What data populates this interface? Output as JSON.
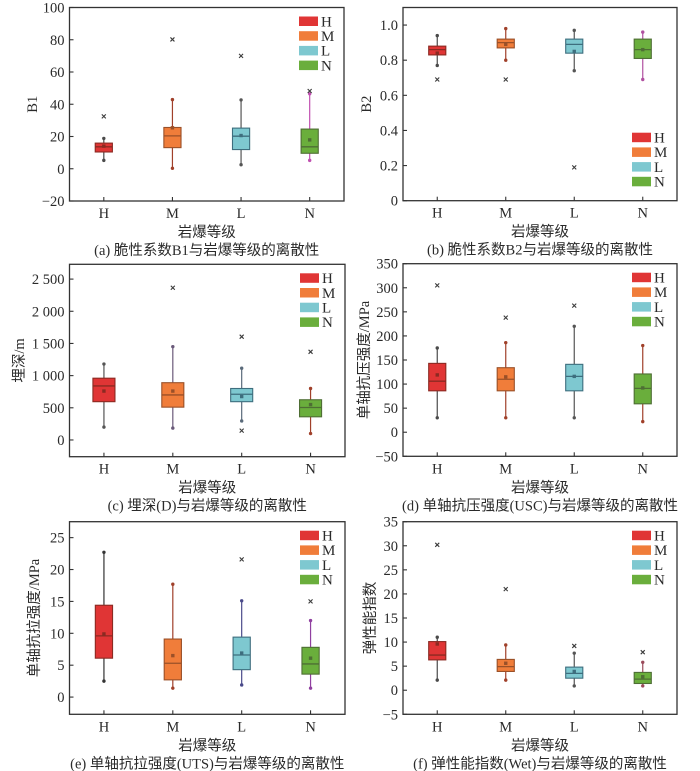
{
  "colors": {
    "H": "#e03535",
    "M": "#f07d3a",
    "L": "#7ec8d0",
    "N": "#6aae3c"
  },
  "edge_colors": {
    "H": "#8b2a22",
    "M": "#9a5028",
    "L": "#3e6e7e",
    "N": "#4e6e34"
  },
  "chart_data": [
    {
      "panel": "a",
      "type": "box",
      "title": "",
      "caption": "(a) 脆性系数B1与岩爆等级的离散性",
      "xlabel": "岩爆等级",
      "ylabel": "B1",
      "categories": [
        "H",
        "M",
        "L",
        "N"
      ],
      "ylim": [
        -20,
        100
      ],
      "yticks": [
        -20,
        0,
        20,
        40,
        60,
        80,
        100
      ],
      "ytick_labels": [
        "−20",
        "0",
        "20",
        "40",
        "60",
        "80",
        "100"
      ],
      "grid": false,
      "legend": {
        "position": "top-right",
        "entries": [
          "H",
          "M",
          "L",
          "N"
        ]
      },
      "series": [
        {
          "name": "H",
          "low": 5.2,
          "q1": 10.4,
          "median": 13.6,
          "q3": 15.9,
          "high": 18.8,
          "mean": 14.0,
          "outliers": [
            32.5
          ],
          "whisker_color": "#4a4a4a"
        },
        {
          "name": "M",
          "low": 0.3,
          "q1": 13.1,
          "median": 20.4,
          "q3": 25.6,
          "high": 42.9,
          "mean": 25.4,
          "outliers": [
            80.2
          ],
          "whisker_color": "#a0402a"
        },
        {
          "name": "L",
          "low": 2.5,
          "q1": 11.9,
          "median": 20.2,
          "q3": 25.2,
          "high": 42.7,
          "mean": 20.6,
          "outliers": [
            70.0
          ],
          "whisker_color": "#555555"
        },
        {
          "name": "N",
          "low": 5.2,
          "q1": 9.6,
          "median": 13.6,
          "q3": 24.6,
          "high": 46.5,
          "mean": 17.9,
          "outliers": [
            48.2
          ],
          "whisker_color": "#c050b0"
        }
      ]
    },
    {
      "panel": "b",
      "type": "box",
      "title": "",
      "caption": "(b) 脆性系数B2与岩爆等级的离散性",
      "xlabel": "岩爆等级",
      "ylabel": "B2",
      "categories": [
        "H",
        "M",
        "L",
        "N"
      ],
      "ylim": [
        0,
        1.1
      ],
      "yticks": [
        0,
        0.2,
        0.4,
        0.6,
        0.8,
        1.0
      ],
      "ytick_labels": [
        "0",
        "0.2",
        "0.4",
        "0.6",
        "0.8",
        "1.0"
      ],
      "grid": false,
      "legend": {
        "position": "bottom-right",
        "entries": [
          "H",
          "M",
          "L",
          "N"
        ]
      },
      "series": [
        {
          "name": "H",
          "low": 0.77,
          "q1": 0.83,
          "median": 0.86,
          "q3": 0.88,
          "high": 0.94,
          "mean": 0.84,
          "outliers": [
            0.69
          ],
          "whisker_color": "#4a4a4a"
        },
        {
          "name": "M",
          "low": 0.8,
          "q1": 0.87,
          "median": 0.9,
          "q3": 0.92,
          "high": 0.98,
          "mean": 0.89,
          "outliers": [
            0.69
          ],
          "whisker_color": "#a0402a"
        },
        {
          "name": "L",
          "low": 0.74,
          "q1": 0.84,
          "median": 0.89,
          "q3": 0.92,
          "high": 0.97,
          "mean": 0.85,
          "outliers": [
            0.19
          ],
          "whisker_color": "#555555"
        },
        {
          "name": "N",
          "low": 0.69,
          "q1": 0.81,
          "median": 0.86,
          "q3": 0.92,
          "high": 0.96,
          "mean": 0.86,
          "outliers": [],
          "whisker_color": "#b050a0"
        }
      ]
    },
    {
      "panel": "c",
      "type": "box",
      "title": "",
      "caption": "(c) 埋深(D)与岩爆等级的离散性",
      "xlabel": "岩爆等级",
      "ylabel": "埋深/m",
      "categories": [
        "H",
        "M",
        "L",
        "N"
      ],
      "ylim": [
        -260,
        2730
      ],
      "yticks": [
        0,
        500,
        1000,
        1500,
        2000,
        2500
      ],
      "ytick_labels": [
        "0",
        "500",
        "1 000",
        "1 500",
        "2 000",
        "2 500"
      ],
      "grid": false,
      "legend": {
        "position": "top-right",
        "entries": [
          "H",
          "M",
          "L",
          "N"
        ]
      },
      "series": [
        {
          "name": "H",
          "low": 200,
          "q1": 595,
          "median": 840,
          "q3": 960,
          "high": 1180,
          "mean": 760,
          "outliers": [],
          "whisker_color": "#555555"
        },
        {
          "name": "M",
          "low": 185,
          "q1": 510,
          "median": 700,
          "q3": 890,
          "high": 1450,
          "mean": 760,
          "outliers": [
            2365
          ],
          "whisker_color": "#6a5a7a"
        },
        {
          "name": "L",
          "low": 295,
          "q1": 595,
          "median": 710,
          "q3": 800,
          "high": 1115,
          "mean": 675,
          "outliers": [
            145,
            1605
          ],
          "whisker_color": "#5a6a7a"
        },
        {
          "name": "N",
          "low": 100,
          "q1": 360,
          "median": 505,
          "q3": 625,
          "high": 800,
          "mean": 550,
          "outliers": [
            1370
          ],
          "whisker_color": "#a0402a"
        }
      ]
    },
    {
      "panel": "d",
      "type": "box",
      "title": "",
      "caption": "(d) 单轴抗压强度(USC)与岩爆等级的离散性",
      "xlabel": "岩爆等级",
      "ylabel": "单轴抗压强度/MPa",
      "categories": [
        "H",
        "M",
        "L",
        "N"
      ],
      "ylim": [
        -50,
        350
      ],
      "yticks": [
        -50,
        0,
        50,
        100,
        150,
        200,
        250,
        300,
        350
      ],
      "ytick_labels": [
        "−50",
        "0",
        "50",
        "100",
        "150",
        "200",
        "250",
        "300",
        "350"
      ],
      "grid": false,
      "legend": {
        "position": "top-right",
        "entries": [
          "H",
          "M",
          "L",
          "N"
        ]
      },
      "series": [
        {
          "name": "H",
          "low": 30,
          "q1": 86,
          "median": 106,
          "q3": 143,
          "high": 175,
          "mean": 119,
          "outliers": [
            305
          ],
          "whisker_color": "#4a4a4a"
        },
        {
          "name": "M",
          "low": 30,
          "q1": 86,
          "median": 110,
          "q3": 134,
          "high": 186,
          "mean": 115,
          "outliers": [
            238
          ],
          "whisker_color": "#a0402a"
        },
        {
          "name": "L",
          "low": 30,
          "q1": 86,
          "median": 116,
          "q3": 141,
          "high": 220,
          "mean": 116,
          "outliers": [
            263
          ],
          "whisker_color": "#555555"
        },
        {
          "name": "N",
          "low": 22,
          "q1": 59,
          "median": 91,
          "q3": 121,
          "high": 180,
          "mean": 92,
          "outliers": [],
          "whisker_color": "#a0402a"
        }
      ]
    },
    {
      "panel": "e",
      "type": "box",
      "title": "",
      "caption": "(e) 单轴抗拉强度(UTS)与岩爆等级的离散性",
      "xlabel": "岩爆等级",
      "ylabel": "单轴抗拉强度/MPa",
      "categories": [
        "H",
        "M",
        "L",
        "N"
      ],
      "ylim": [
        -2.7,
        27.5
      ],
      "yticks": [
        0,
        5,
        10,
        15,
        20,
        25
      ],
      "ytick_labels": [
        "0",
        "5",
        "10",
        "15",
        "20",
        "25"
      ],
      "grid": false,
      "legend": {
        "position": "top-right",
        "entries": [
          "H",
          "M",
          "L",
          "N"
        ]
      },
      "series": [
        {
          "name": "H",
          "low": 2.5,
          "q1": 6.1,
          "median": 9.6,
          "q3": 14.4,
          "high": 22.7,
          "mean": 9.9,
          "outliers": [],
          "whisker_color": "#333333"
        },
        {
          "name": "M",
          "low": 1.4,
          "q1": 2.7,
          "median": 5.3,
          "q3": 9.1,
          "high": 17.7,
          "mean": 6.5,
          "outliers": [],
          "whisker_color": "#a0402a"
        },
        {
          "name": "L",
          "low": 1.9,
          "q1": 4.3,
          "median": 6.6,
          "q3": 9.4,
          "high": 15.1,
          "mean": 6.9,
          "outliers": [
            21.6
          ],
          "whisker_color": "#4a4a8a"
        },
        {
          "name": "N",
          "low": 1.4,
          "q1": 3.6,
          "median": 5.2,
          "q3": 7.8,
          "high": 12.0,
          "mean": 6.1,
          "outliers": [
            15.0
          ],
          "whisker_color": "#9040a0"
        }
      ]
    },
    {
      "panel": "f",
      "type": "box",
      "title": "",
      "caption": "(f)  弹性能指数(Wet)与岩爆等级的离散性",
      "xlabel": "岩爆等级",
      "ylabel": "弹性能指数",
      "categories": [
        "H",
        "M",
        "L",
        "N"
      ],
      "ylim": [
        -5,
        35
      ],
      "yticks": [
        -5,
        0,
        5,
        10,
        15,
        20,
        25,
        30,
        35
      ],
      "ytick_labels": [
        "−5",
        "0",
        "5",
        "10",
        "15",
        "20",
        "25",
        "30",
        "35"
      ],
      "grid": false,
      "legend": {
        "position": "top-right",
        "entries": [
          "H",
          "M",
          "L",
          "N"
        ]
      },
      "series": [
        {
          "name": "H",
          "low": 2.1,
          "q1": 6.3,
          "median": 7.3,
          "q3": 10.1,
          "high": 11.0,
          "mean": 9.6,
          "outliers": [
            30.2
          ],
          "whisker_color": "#4a4a4a"
        },
        {
          "name": "M",
          "low": 2.1,
          "q1": 3.9,
          "median": 4.9,
          "q3": 6.4,
          "high": 9.4,
          "mean": 5.6,
          "outliers": [
            21.0
          ],
          "whisker_color": "#a0402a"
        },
        {
          "name": "L",
          "low": 0.9,
          "q1": 2.5,
          "median": 3.5,
          "q3": 4.8,
          "high": 7.7,
          "mean": 3.9,
          "outliers": [
            9.2
          ],
          "whisker_color": "#555555"
        },
        {
          "name": "N",
          "low": 0.9,
          "q1": 1.4,
          "median": 2.3,
          "q3": 3.7,
          "high": 5.8,
          "mean": 2.8,
          "outliers": [
            7.9
          ],
          "whisker_color": "#9a4a5a"
        }
      ]
    }
  ]
}
